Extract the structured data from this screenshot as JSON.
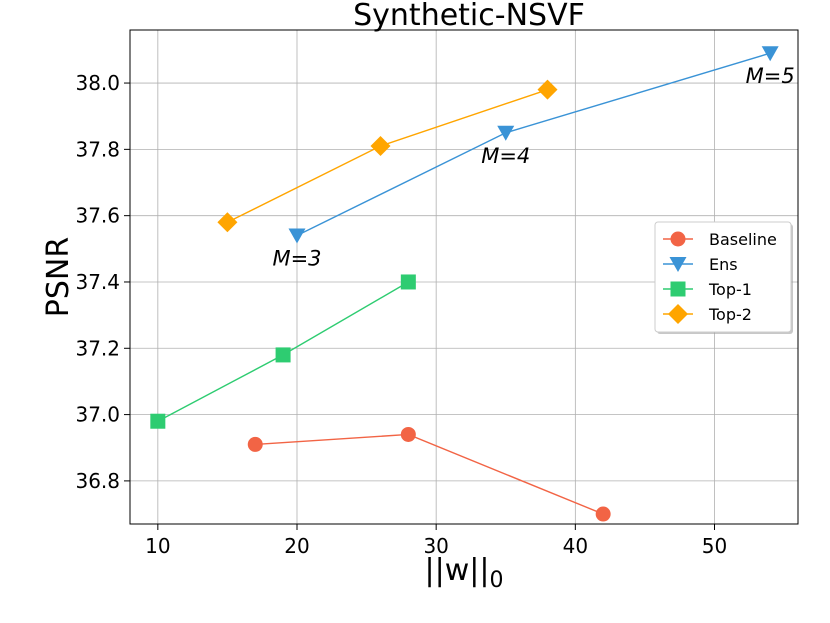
{
  "chart_data": {
    "type": "line",
    "title": "Synthetic-NSVF",
    "xlabel": "||w||",
    "xlabel_subscript": "0",
    "ylabel": "PSNR",
    "xlim": [
      8,
      56
    ],
    "ylim": [
      36.67,
      38.16
    ],
    "xticks": [
      10,
      20,
      30,
      40,
      50
    ],
    "yticks": [
      36.8,
      37.0,
      37.2,
      37.4,
      37.6,
      37.8,
      38.0
    ],
    "ytick_labels": [
      "36.8",
      "37.0",
      "37.2",
      "37.4",
      "37.6",
      "37.8",
      "38.0"
    ],
    "grid": true,
    "legend_position": "center-right",
    "series": [
      {
        "name": "Baseline",
        "color": "#f26445",
        "marker": "circle",
        "x": [
          17,
          28,
          42
        ],
        "y": [
          36.91,
          36.94,
          36.7
        ]
      },
      {
        "name": "Ens",
        "color": "#3a93d6",
        "marker": "triangle-down",
        "x": [
          20,
          35,
          54
        ],
        "y": [
          37.54,
          37.85,
          38.09
        ]
      },
      {
        "name": "Top-1",
        "color": "#2ecc71",
        "marker": "square",
        "x": [
          10,
          19,
          28
        ],
        "y": [
          36.98,
          37.18,
          37.4
        ]
      },
      {
        "name": "Top-2",
        "color": "#ffa500",
        "marker": "diamond",
        "x": [
          15,
          26,
          38
        ],
        "y": [
          37.58,
          37.81,
          37.98
        ]
      }
    ],
    "annotations": [
      {
        "text": "M=3",
        "x": 20,
        "y": 37.54
      },
      {
        "text": "M=4",
        "x": 35,
        "y": 37.85
      },
      {
        "text": "M=5",
        "x": 54,
        "y": 38.09
      }
    ]
  }
}
